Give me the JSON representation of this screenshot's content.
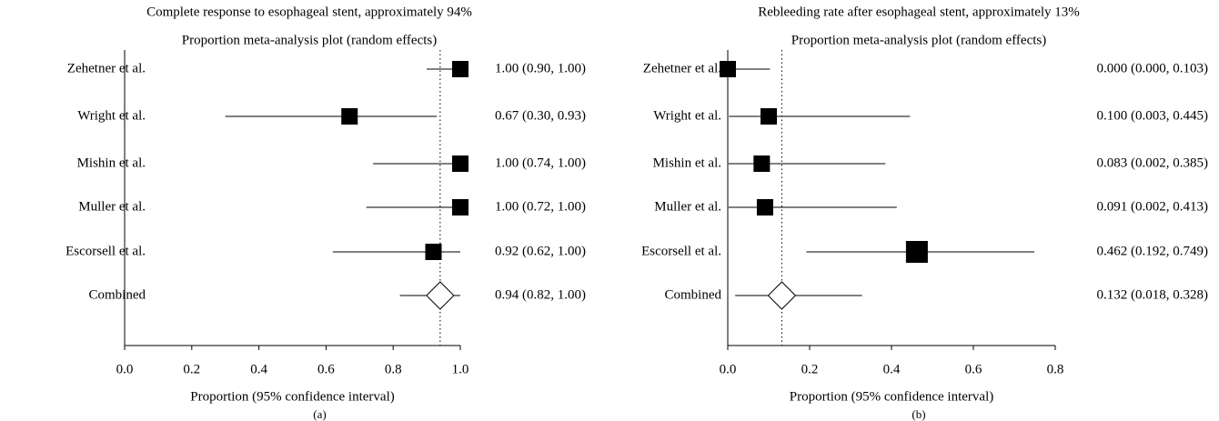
{
  "chart_data": [
    {
      "type": "forest",
      "title": "Complete response to esophageal stent, approximately 94%",
      "subtitle": "Proportion meta-analysis plot (random effects)",
      "categories": [
        "Zehetner et al.",
        "Wright et al.",
        "Mishin et al.",
        "Muller et al.",
        "Escorsell et al."
      ],
      "values": [
        1.0,
        0.67,
        1.0,
        1.0,
        0.92
      ],
      "lower": [
        0.9,
        0.3,
        0.74,
        0.72,
        0.62
      ],
      "upper": [
        1.0,
        0.93,
        1.0,
        1.0,
        1.0
      ],
      "value_labels": [
        "1.00 (0.90, 1.00)",
        "0.67 (0.30, 0.93)",
        "1.00 (0.74, 1.00)",
        "1.00 (0.72, 1.00)",
        "0.92 (0.62, 1.00)"
      ],
      "combined": {
        "name": "Combined",
        "value": 0.94,
        "lower": 0.82,
        "upper": 1.0,
        "label": "0.94 (0.82, 1.00)"
      },
      "xlim": [
        0,
        1
      ],
      "xticks": [
        {
          "value": 0,
          "label": "0.0"
        },
        0.2,
        0.4,
        0.6,
        0.8,
        {
          "value": 1,
          "label": "1.0"
        }
      ],
      "xlabel": "Proportion (95% confidence interval)",
      "panel_label": "(a)",
      "color": "#000000"
    },
    {
      "type": "forest",
      "title": "Rebleeding rate after esophageal stent, approximately 13%",
      "subtitle": "Proportion meta-analysis plot (random effects)",
      "categories": [
        "Zehetner et al.",
        "Wright et al.",
        "Mishin et al.",
        "Muller et al.",
        "Escorsell et al."
      ],
      "values": [
        0.0,
        0.1,
        0.083,
        0.091,
        0.462
      ],
      "lower": [
        0.0,
        0.003,
        0.002,
        0.002,
        0.192
      ],
      "upper": [
        0.103,
        0.445,
        0.385,
        0.413,
        0.749
      ],
      "value_labels": [
        "0.000 (0.000, 0.103)",
        "0.100 (0.003, 0.445)",
        "0.083 (0.002, 0.385)",
        "0.091 (0.002, 0.413)",
        "0.462 (0.192, 0.749)"
      ],
      "combined": {
        "name": "Combined",
        "value": 0.132,
        "lower": 0.018,
        "upper": 0.328,
        "label": "0.132 (0.018, 0.328)"
      },
      "xlim": [
        0,
        0.8
      ],
      "xticks": [
        {
          "value": 0,
          "label": "0.0"
        },
        0.2,
        0.4,
        0.6,
        0.8
      ],
      "xlabel": "Proportion (95% confidence interval)",
      "panel_label": "(b)",
      "color": "#000000"
    }
  ]
}
